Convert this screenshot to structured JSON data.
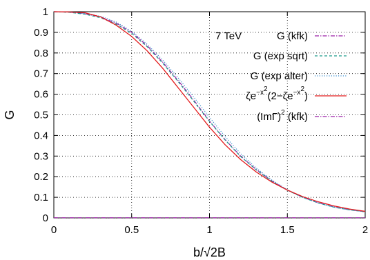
{
  "chart_data": {
    "type": "line",
    "xlabel": "b/√2B",
    "ylabel": "G",
    "xlim": [
      0,
      2
    ],
    "ylim": [
      0,
      1
    ],
    "xticks": [
      "0",
      "0.5",
      "1",
      "1.5",
      "2"
    ],
    "yticks": [
      "0",
      "0.1",
      "0.2",
      "0.3",
      "0.4",
      "0.5",
      "0.6",
      "0.7",
      "0.8",
      "0.9",
      "1"
    ],
    "grid": true,
    "legend_position": "top-right",
    "legend_header": "7 TeV",
    "series": [
      {
        "name": "G (kfk)",
        "color": "#9b1fa6",
        "dash": "dash-dot",
        "x": [
          0,
          0.1,
          0.2,
          0.3,
          0.4,
          0.5,
          0.6,
          0.7,
          0.8,
          0.9,
          1.0,
          1.1,
          1.2,
          1.3,
          1.4,
          1.5,
          1.6,
          1.7,
          1.8,
          1.9,
          2.0
        ],
        "y": [
          1.0,
          0.998,
          0.99,
          0.975,
          0.945,
          0.9,
          0.835,
          0.755,
          0.665,
          0.57,
          0.47,
          0.38,
          0.3,
          0.235,
          0.18,
          0.135,
          0.1,
          0.073,
          0.053,
          0.04,
          0.03
        ]
      },
      {
        "name": "G (exp sqrt)",
        "color": "#1a9b8a",
        "dash": "dashed",
        "x": [
          0,
          0.1,
          0.2,
          0.3,
          0.4,
          0.5,
          0.6,
          0.7,
          0.8,
          0.9,
          1.0,
          1.1,
          1.2,
          1.3,
          1.4,
          1.5,
          1.6,
          1.7,
          1.8,
          1.9,
          2.0
        ],
        "y": [
          1.0,
          0.997,
          0.988,
          0.971,
          0.94,
          0.895,
          0.83,
          0.75,
          0.66,
          0.565,
          0.468,
          0.378,
          0.298,
          0.233,
          0.178,
          0.134,
          0.099,
          0.072,
          0.052,
          0.039,
          0.03
        ]
      },
      {
        "name": "G (exp alter)",
        "color": "#3a8fd0",
        "dash": "dotted",
        "x": [
          0,
          0.1,
          0.2,
          0.3,
          0.4,
          0.5,
          0.6,
          0.7,
          0.8,
          0.9,
          1.0,
          1.1,
          1.2,
          1.3,
          1.4,
          1.5,
          1.6,
          1.7,
          1.8,
          1.9,
          2.0
        ],
        "y": [
          1.0,
          0.998,
          0.992,
          0.978,
          0.95,
          0.905,
          0.842,
          0.765,
          0.678,
          0.585,
          0.488,
          0.395,
          0.312,
          0.242,
          0.184,
          0.137,
          0.1,
          0.072,
          0.052,
          0.039,
          0.03
        ]
      },
      {
        "name": "ζe^{−x²}(2−ζe^{−x²})",
        "color": "#e31a1c",
        "dash": "solid",
        "x": [
          0,
          0.1,
          0.2,
          0.3,
          0.4,
          0.5,
          0.6,
          0.7,
          0.8,
          0.9,
          1.0,
          1.1,
          1.2,
          1.3,
          1.4,
          1.5,
          1.6,
          1.7,
          1.8,
          1.9,
          2.0
        ],
        "y": [
          1.0,
          0.999,
          0.995,
          0.975,
          0.935,
          0.88,
          0.81,
          0.725,
          0.63,
          0.535,
          0.44,
          0.355,
          0.283,
          0.223,
          0.174,
          0.135,
          0.103,
          0.078,
          0.058,
          0.043,
          0.032
        ]
      },
      {
        "name": "(ImΓ)² (kfk)",
        "color": "#9b1fa6",
        "dash": "dash-dot",
        "x": [
          0,
          0.5,
          1.0,
          1.5,
          2.0
        ],
        "y": [
          0.001,
          0.001,
          0.001,
          0.001,
          0.001
        ]
      }
    ]
  }
}
